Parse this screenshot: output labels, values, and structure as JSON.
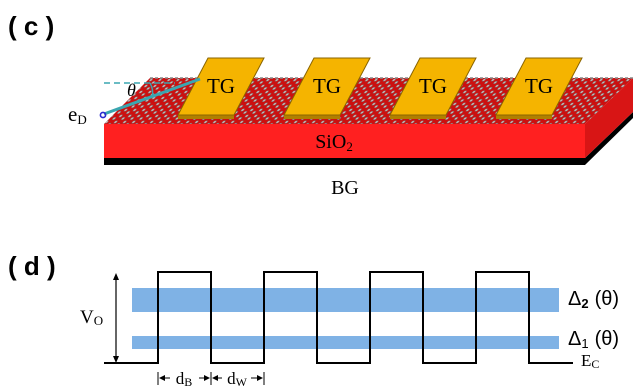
{
  "panel_c": {
    "label": "( c )",
    "gate_label": "TG",
    "gate_count": 4,
    "substrate_label": "SiO",
    "substrate_sub": "2",
    "back_gate_label": "BG",
    "angle_label": "θ",
    "electron_label": "e",
    "electron_sub": "D",
    "colors": {
      "substrate": "#ff2020",
      "gate": "#f5b400",
      "gate_edge": "#8a6400",
      "back_gate": "#000000",
      "beam": "#3aa6b0"
    }
  },
  "panel_d": {
    "label": "( d )",
    "potential_label": "V",
    "potential_sub": "O",
    "band2_symbol": "Δ",
    "band2_sub": "2",
    "band2_arg": "(θ)",
    "band1_symbol": "Δ",
    "band1_sub": "1",
    "band1_arg": "(θ)",
    "barrier_width_label": "d",
    "barrier_width_sub": "B",
    "well_width_label": "d",
    "well_width_sub": "W",
    "baseline_label": "E",
    "baseline_sub": "C",
    "period_count": 4,
    "colors": {
      "band": "#7fb2e5",
      "line": "#000000"
    }
  }
}
